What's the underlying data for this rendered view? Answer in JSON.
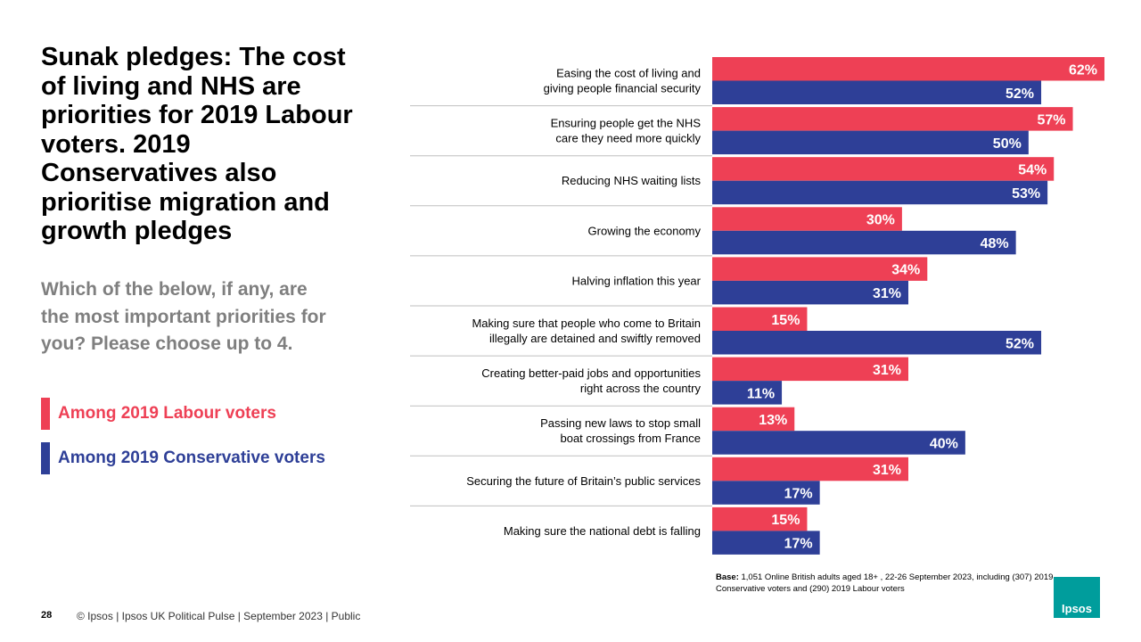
{
  "title": "Sunak pledges: The cost of living and NHS are priorities for 2019 Labour voters. 2019 Conservatives also prioritise migration and growth pledges",
  "subtitle": "Which of the below, if any, are the most important priorities for you? Please choose up to 4.",
  "legend": {
    "labour": "Among 2019 Labour voters",
    "conservative": "Among 2019 Conservative voters"
  },
  "colors": {
    "labour": "#ee4055",
    "conservative": "#2e3f97",
    "logo": "#009d9c"
  },
  "chart_data": {
    "type": "bar",
    "orientation": "horizontal",
    "categories": [
      [
        "Easing the cost of living and",
        "giving people financial security"
      ],
      [
        "Ensuring people get the NHS",
        "care they need more quickly"
      ],
      [
        "Reducing NHS waiting lists"
      ],
      [
        "Growing the economy"
      ],
      [
        "Halving inflation this year"
      ],
      [
        "Making sure that people who come to Britain",
        "illegally are detained and swiftly removed"
      ],
      [
        "Creating better-paid jobs and opportunities",
        "right across the country"
      ],
      [
        "Passing new laws to stop small",
        "boat crossings from France"
      ],
      [
        "Securing the future of Britain’s public services"
      ],
      [
        "Making sure the national debt is falling"
      ]
    ],
    "series": [
      {
        "name": "Among 2019 Labour voters",
        "values": [
          62,
          57,
          54,
          30,
          34,
          15,
          31,
          13,
          31,
          15
        ]
      },
      {
        "name": "Among 2019 Conservative voters",
        "values": [
          52,
          50,
          53,
          48,
          31,
          52,
          11,
          40,
          17,
          17
        ]
      }
    ],
    "value_suffix": "%",
    "xlim": [
      0,
      62
    ],
    "grid": false
  },
  "base_note": {
    "label": "Base:",
    "text": " 1,051 Online British adults aged 18+ , 22-26 September 2023, including (307) 2019 Conservative voters and (290) 2019 Labour voters"
  },
  "page_number": "28",
  "footer": "© Ipsos | Ipsos UK Political Pulse | September 2023 | Public",
  "logo_text": "Ipsos"
}
